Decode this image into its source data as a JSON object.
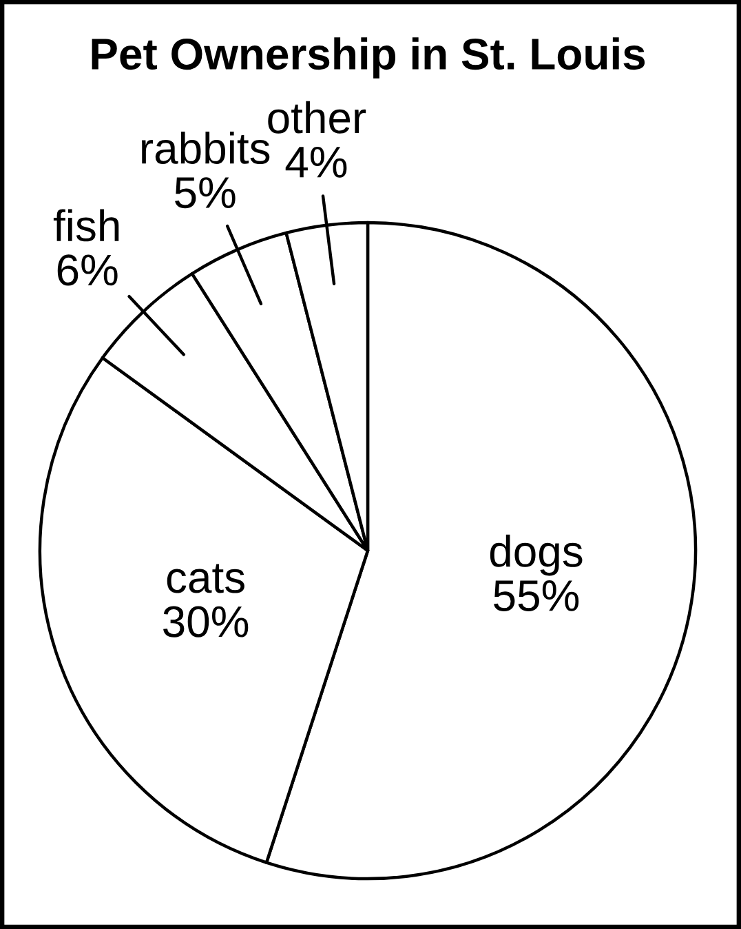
{
  "chart_data": {
    "type": "pie",
    "title": "Pet Ownership in St. Louis",
    "categories": [
      "dogs",
      "cats",
      "fish",
      "rabbits",
      "other"
    ],
    "values": [
      55,
      30,
      6,
      5,
      4
    ],
    "value_labels": [
      "55%",
      "30%",
      "6%",
      "5%",
      "4%"
    ],
    "colors": [
      "#ffffff",
      "#ffffff",
      "#ffffff",
      "#ffffff",
      "#ffffff"
    ]
  }
}
